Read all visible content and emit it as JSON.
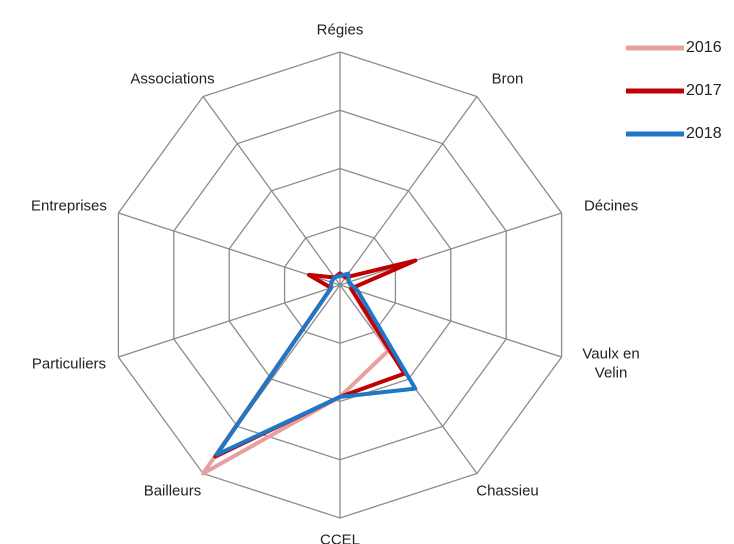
{
  "chart_data": {
    "type": "radar",
    "categories": [
      "Régies",
      "Bron",
      "Décines",
      "Vaulx en Velin",
      "Chassieu",
      "CCEL",
      "Bailleurs",
      "Particuliers",
      "Entreprises",
      "Associations"
    ],
    "series": [
      {
        "name": "2016",
        "color": "#e6a0a0",
        "values": [
          4,
          4,
          4,
          5,
          35,
          48,
          100,
          4,
          4,
          4
        ]
      },
      {
        "name": "2017",
        "color": "#c00000",
        "values": [
          5,
          4,
          34,
          5,
          47,
          48,
          91,
          4,
          14,
          4
        ]
      },
      {
        "name": "2018",
        "color": "#1f77c8",
        "values": [
          4,
          6,
          4,
          8,
          55,
          48,
          90,
          4,
          4,
          4
        ]
      }
    ],
    "ylim": [
      0,
      100
    ],
    "yticks": [
      25,
      50,
      75,
      100
    ],
    "grid": true,
    "legend": "top-right"
  }
}
